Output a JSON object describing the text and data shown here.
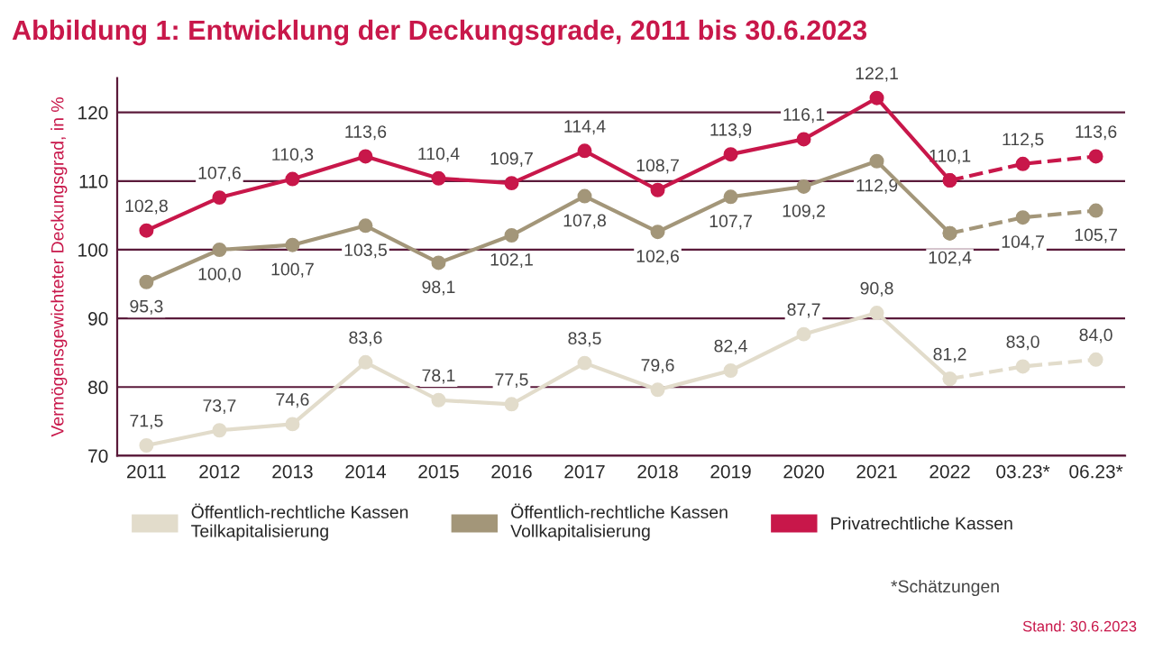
{
  "chart_data": {
    "type": "line",
    "title": "Abbildung 1: Entwicklung der Deckungsgrade, 2011 bis 30.6.2023",
    "ylabel": "Vermögensgewichteter Deckungsgrad, in %",
    "categories": [
      "2011",
      "2012",
      "2013",
      "2014",
      "2015",
      "2016",
      "2017",
      "2018",
      "2019",
      "2020",
      "2021",
      "2022",
      "03.23*",
      "06.23*"
    ],
    "ylim": [
      70,
      125
    ],
    "yticks": [
      70,
      80,
      90,
      100,
      110,
      120
    ],
    "grid": "y",
    "legend": "bottom",
    "marker": "circle",
    "annotations": [
      "*Schätzungen",
      "Stand: 30.6.2023"
    ],
    "series": [
      {
        "name": "Öffentlich-rechtliche Kassen\nTeilkapitalisierung",
        "color": "#e2dccb",
        "line_style": "solid",
        "values": [
          71.5,
          73.7,
          74.6,
          83.6,
          78.1,
          77.5,
          83.5,
          79.6,
          82.4,
          87.7,
          90.8,
          81.2,
          null,
          null
        ],
        "value_labels": [
          "71,5",
          "73,7",
          "74,6",
          "83,6",
          "78,1",
          "77,5",
          "83,5",
          "79,6",
          "82,4",
          "87,7",
          "90,8",
          "81,2",
          null,
          null
        ]
      },
      {
        "name": "Öffentlich-rechtliche Kassen\nVollkapitalisierung",
        "color": "#a39679",
        "line_style": "solid",
        "values": [
          95.3,
          100.0,
          100.7,
          103.5,
          98.1,
          102.1,
          107.8,
          102.6,
          107.7,
          109.2,
          112.9,
          102.4,
          null,
          null
        ],
        "value_labels": [
          "95,3",
          "100,0",
          "100,7",
          "103,5",
          "98,1",
          "102,1",
          "107,8",
          "102,6",
          "107,7",
          "109,2",
          "112,9",
          "102,4",
          null,
          null
        ]
      },
      {
        "name": "Privatrechtliche Kassen",
        "color": "#c8174a",
        "line_style": "solid",
        "values": [
          102.8,
          107.6,
          110.3,
          113.6,
          110.4,
          109.7,
          114.4,
          108.7,
          113.9,
          116.1,
          122.1,
          110.1,
          null,
          null
        ],
        "value_labels": [
          "102,8",
          "107,6",
          "110,3",
          "113,6",
          "110,4",
          "109,7",
          "114,4",
          "108,7",
          "113,9",
          "116,1",
          "122,1",
          "110,1",
          null,
          null
        ]
      },
      {
        "color": "#e2dccb",
        "line_style": "dashed",
        "values": [
          null,
          null,
          null,
          null,
          null,
          null,
          null,
          null,
          null,
          null,
          null,
          81.2,
          83.0,
          84.0
        ],
        "value_labels": [
          null,
          null,
          null,
          null,
          null,
          null,
          null,
          null,
          null,
          null,
          null,
          null,
          "83,0",
          "84,0"
        ]
      },
      {
        "color": "#a39679",
        "line_style": "dashed",
        "values": [
          null,
          null,
          null,
          null,
          null,
          null,
          null,
          null,
          null,
          null,
          null,
          102.4,
          104.7,
          105.7
        ],
        "value_labels": [
          null,
          null,
          null,
          null,
          null,
          null,
          null,
          null,
          null,
          null,
          null,
          null,
          "104,7",
          "105,7"
        ]
      },
      {
        "color": "#c8174a",
        "line_style": "dashed",
        "values": [
          null,
          null,
          null,
          null,
          null,
          null,
          null,
          null,
          null,
          null,
          null,
          110.1,
          112.5,
          113.6
        ],
        "value_labels": [
          null,
          null,
          null,
          null,
          null,
          null,
          null,
          null,
          null,
          null,
          null,
          null,
          "112,5",
          "113,6"
        ]
      }
    ]
  }
}
